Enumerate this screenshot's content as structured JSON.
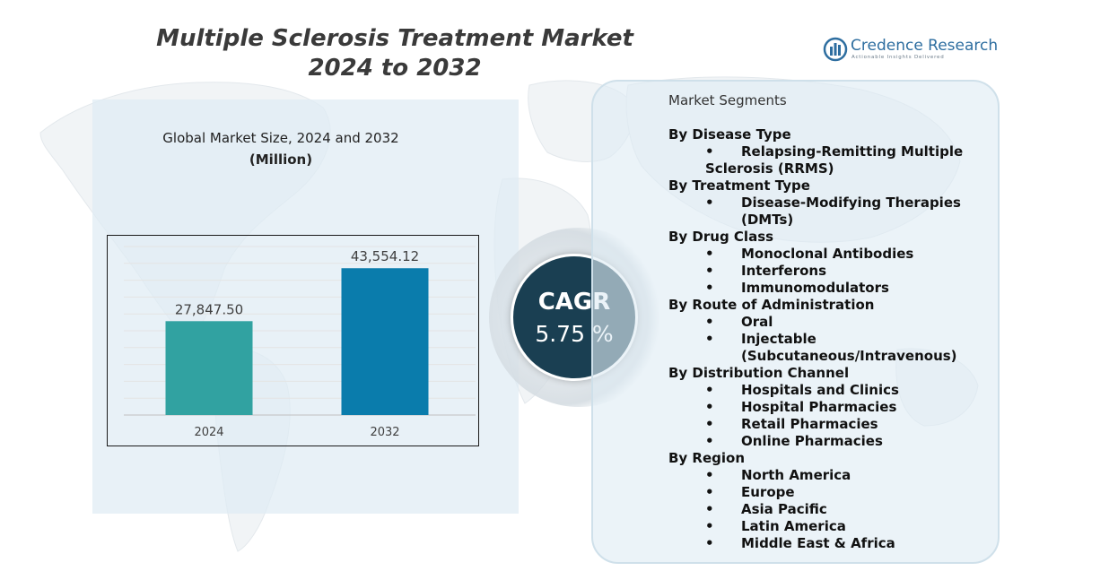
{
  "title": {
    "line1": "Multiple Sclerosis Treatment Market",
    "line2": "2024 to 2032"
  },
  "logo": {
    "name": "Credence Research",
    "tagline": "Actionable Insights Delivered",
    "icon": "bar-chart-globe-icon"
  },
  "chart_title": {
    "line1": "Global Market Size,  2024 and 2032",
    "unit": "(Million)"
  },
  "cagr": {
    "label": "CAGR",
    "value": "5.75 %"
  },
  "segments": {
    "header": "Market Segments",
    "groups": [
      {
        "category": "By Disease Type",
        "items": [
          "Relapsing-Remitting Multiple Sclerosis (RRMS)"
        ]
      },
      {
        "category": "By Treatment Type",
        "items": [
          "Disease-Modifying Therapies (DMTs)"
        ]
      },
      {
        "category": "By Drug Class",
        "items": [
          "Monoclonal Antibodies",
          "Interferons",
          "Immunomodulators"
        ]
      },
      {
        "category": "By Route of Administration",
        "items": [
          "Oral",
          "Injectable (Subcutaneous/Intravenous)"
        ]
      },
      {
        "category": "By Distribution Channel",
        "items": [
          "Hospitals and Clinics",
          "Hospital Pharmacies",
          "Retail Pharmacies",
          "Online Pharmacies"
        ]
      },
      {
        "category": "By Region",
        "items": [
          "North America",
          "Europe",
          "Asia Pacific",
          "Latin America",
          "Middle East & Africa"
        ]
      }
    ]
  },
  "chart_data": {
    "type": "bar",
    "categories": [
      "2024",
      "2032"
    ],
    "values": [
      27847.5,
      43554.12
    ],
    "data_labels": [
      "27,847.50",
      "43,554.12"
    ],
    "title": "Global Market Size,  2024 and 2032",
    "ylabel": "",
    "xlabel": "",
    "ylim": [
      0,
      50000
    ],
    "grid": true,
    "colors": [
      "#31a2a1",
      "#0a7cac"
    ]
  },
  "colors": {
    "cagr_circle": "#1a3f52",
    "panel_bg": "#dfecf4",
    "logo_text": "#2e6ea0"
  }
}
